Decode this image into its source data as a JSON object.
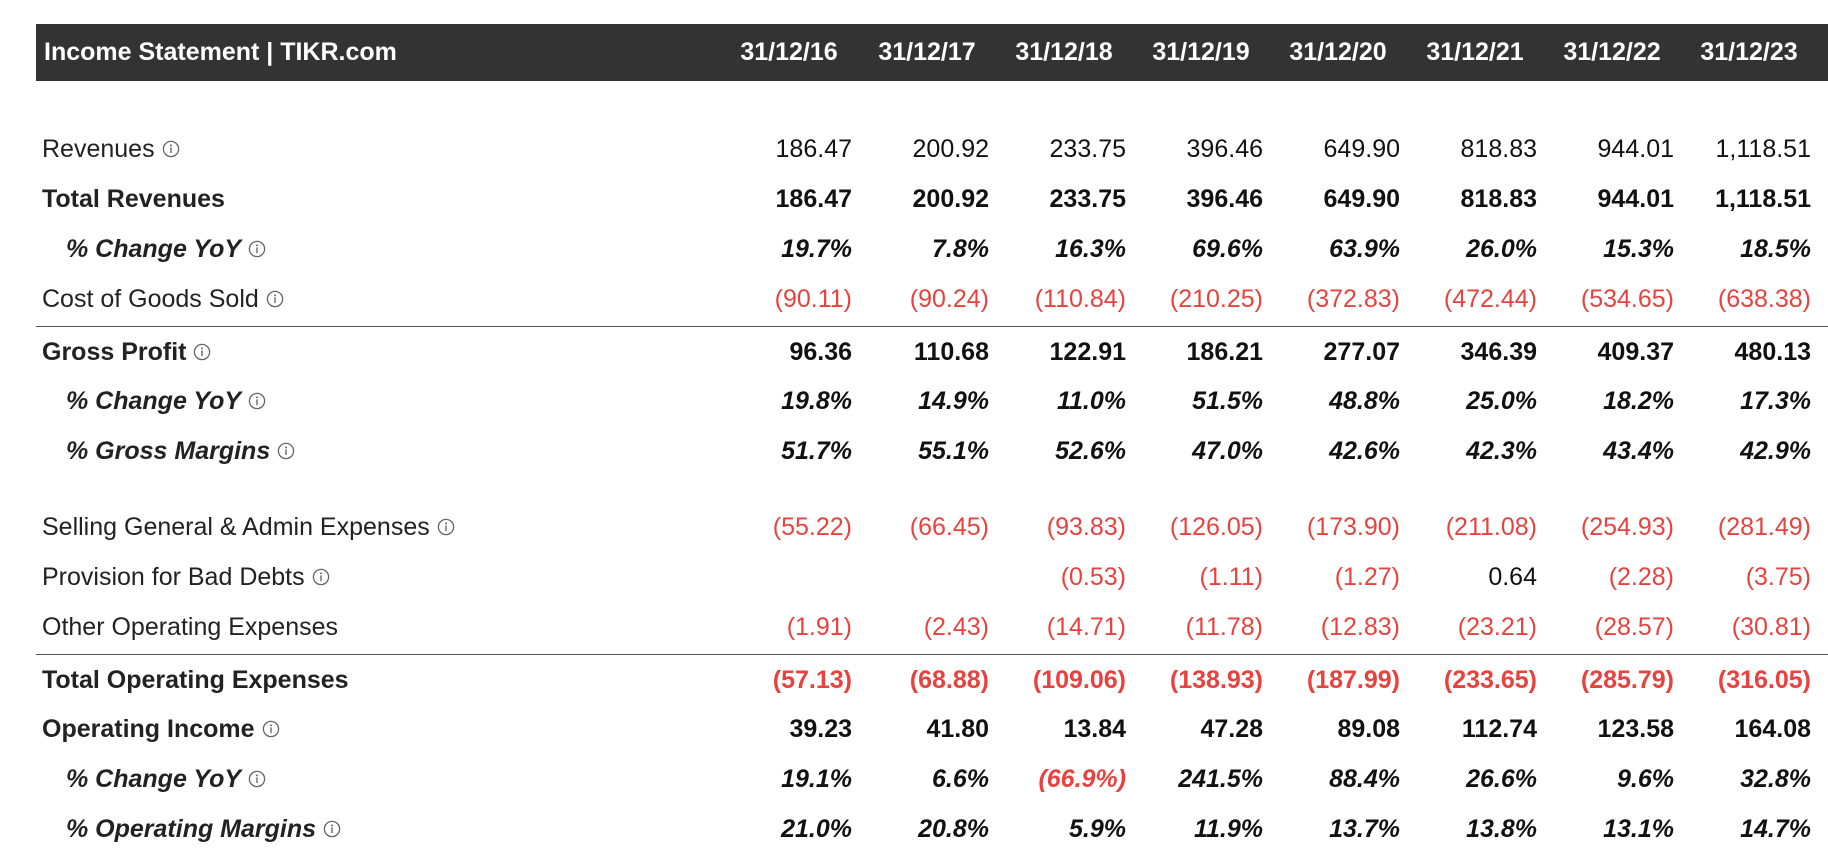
{
  "title": "Income Statement | TIKR.com",
  "periods": [
    "31/12/16",
    "31/12/17",
    "31/12/18",
    "31/12/19",
    "31/12/20",
    "31/12/21",
    "31/12/22",
    "31/12/23"
  ],
  "colors": {
    "header_bg": "#333333",
    "header_text": "#ffffff",
    "negative": "#e8423f",
    "positive": "#111111",
    "divider": "#555555"
  },
  "rows": [
    {
      "label": "Revenues",
      "style": "normal",
      "info": true,
      "values": [
        "186.47",
        "200.92",
        "233.75",
        "396.46",
        "649.90",
        "818.83",
        "944.01",
        "1,118.51"
      ]
    },
    {
      "label": "Total Revenues",
      "style": "bold",
      "info": false,
      "values": [
        "186.47",
        "200.92",
        "233.75",
        "396.46",
        "649.90",
        "818.83",
        "944.01",
        "1,118.51"
      ]
    },
    {
      "label": "% Change YoY",
      "style": "pct",
      "info": true,
      "values": [
        "19.7%",
        "7.8%",
        "16.3%",
        "69.6%",
        "63.9%",
        "26.0%",
        "15.3%",
        "18.5%"
      ]
    },
    {
      "label": "Cost of Goods Sold",
      "style": "normal",
      "info": true,
      "values": [
        "(90.11)",
        "(90.24)",
        "(110.84)",
        "(210.25)",
        "(372.83)",
        "(472.44)",
        "(534.65)",
        "(638.38)"
      ]
    },
    {
      "label": "Gross Profit",
      "style": "bold",
      "info": true,
      "values": [
        "96.36",
        "110.68",
        "122.91",
        "186.21",
        "277.07",
        "346.39",
        "409.37",
        "480.13"
      ]
    },
    {
      "label": "% Change YoY",
      "style": "pct",
      "info": true,
      "values": [
        "19.8%",
        "14.9%",
        "11.0%",
        "51.5%",
        "48.8%",
        "25.0%",
        "18.2%",
        "17.3%"
      ]
    },
    {
      "label": "% Gross Margins",
      "style": "pct",
      "info": true,
      "values": [
        "51.7%",
        "55.1%",
        "52.6%",
        "47.0%",
        "42.6%",
        "42.3%",
        "43.4%",
        "42.9%"
      ]
    },
    {
      "label": "Selling General & Admin Expenses",
      "style": "normal",
      "info": true,
      "values": [
        "(55.22)",
        "(66.45)",
        "(93.83)",
        "(126.05)",
        "(173.90)",
        "(211.08)",
        "(254.93)",
        "(281.49)"
      ]
    },
    {
      "label": "Provision for Bad Debts",
      "style": "normal",
      "info": true,
      "values": [
        "",
        "",
        "(0.53)",
        "(1.11)",
        "(1.27)",
        "0.64",
        "(2.28)",
        "(3.75)"
      ]
    },
    {
      "label": "Other Operating Expenses",
      "style": "normal",
      "info": false,
      "values": [
        "(1.91)",
        "(2.43)",
        "(14.71)",
        "(11.78)",
        "(12.83)",
        "(23.21)",
        "(28.57)",
        "(30.81)"
      ]
    },
    {
      "label": "Total Operating Expenses",
      "style": "bold",
      "info": false,
      "values": [
        "(57.13)",
        "(68.88)",
        "(109.06)",
        "(138.93)",
        "(187.99)",
        "(233.65)",
        "(285.79)",
        "(316.05)"
      ]
    },
    {
      "label": "Operating Income",
      "style": "bold",
      "info": true,
      "values": [
        "39.23",
        "41.80",
        "13.84",
        "47.28",
        "89.08",
        "112.74",
        "123.58",
        "164.08"
      ]
    },
    {
      "label": "% Change YoY",
      "style": "pct",
      "info": true,
      "values": [
        "19.1%",
        "6.6%",
        "(66.9%)",
        "241.5%",
        "88.4%",
        "26.6%",
        "9.6%",
        "32.8%"
      ]
    },
    {
      "label": "% Operating Margins",
      "style": "pct",
      "info": true,
      "values": [
        "21.0%",
        "20.8%",
        "5.9%",
        "11.9%",
        "13.7%",
        "13.8%",
        "13.1%",
        "14.7%"
      ]
    }
  ]
}
